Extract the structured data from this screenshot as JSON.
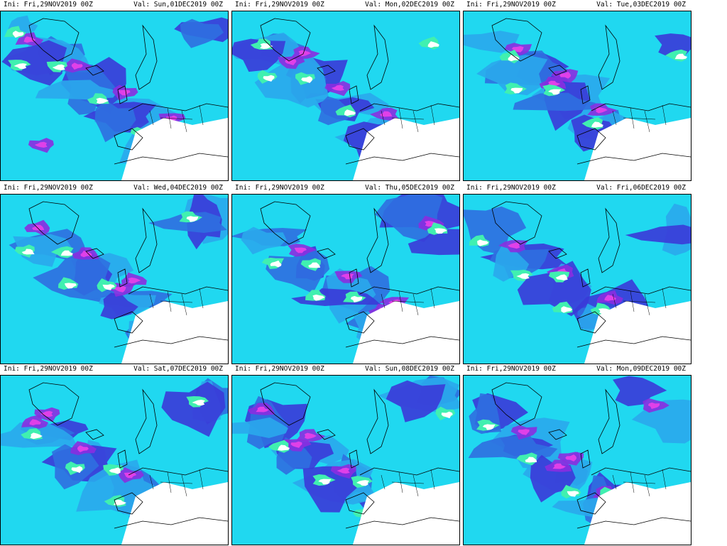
{
  "panels": [
    {
      "ini": "Ini: Fri,29NOV2019 00Z",
      "val": "Val: Sun,01DEC2019 00Z"
    },
    {
      "ini": "Ini: Fri,29NOV2019 00Z",
      "val": "Val: Mon,02DEC2019 00Z"
    },
    {
      "ini": "Ini: Fri,29NOV2019 00Z",
      "val": "Val: Tue,03DEC2019 00Z"
    },
    {
      "ini": "Ini: Fri,29NOV2019 00Z",
      "val": "Val: Wed,04DEC2019 00Z"
    },
    {
      "ini": "Ini: Fri,29NOV2019 00Z",
      "val": "Val: Thu,05DEC2019 00Z"
    },
    {
      "ini": "Ini: Fri,29NOV2019 00Z",
      "val": "Val: Fri,06DEC2019 00Z"
    },
    {
      "ini": "Ini: Fri,29NOV2019 00Z",
      "val": "Val: Sat,07DEC2019 00Z"
    },
    {
      "ini": "Ini: Fri,29NOV2019 00Z",
      "val": "Val: Sun,08DEC2019 00Z"
    },
    {
      "ini": "Ini: Fri,29NOV2019 00Z",
      "val": "Val: Mon,09DEC2019 00Z"
    }
  ],
  "colors": {
    "background": "#ffffff",
    "level_1": "#40f0b0",
    "level_2": "#20d8f0",
    "level_3": "#2aa8ec",
    "level_4": "#2f6fe0",
    "level_5": "#3a3ad8",
    "level_6": "#8a2ee0",
    "level_7": "#e040e8",
    "coastline": "#000000"
  }
}
